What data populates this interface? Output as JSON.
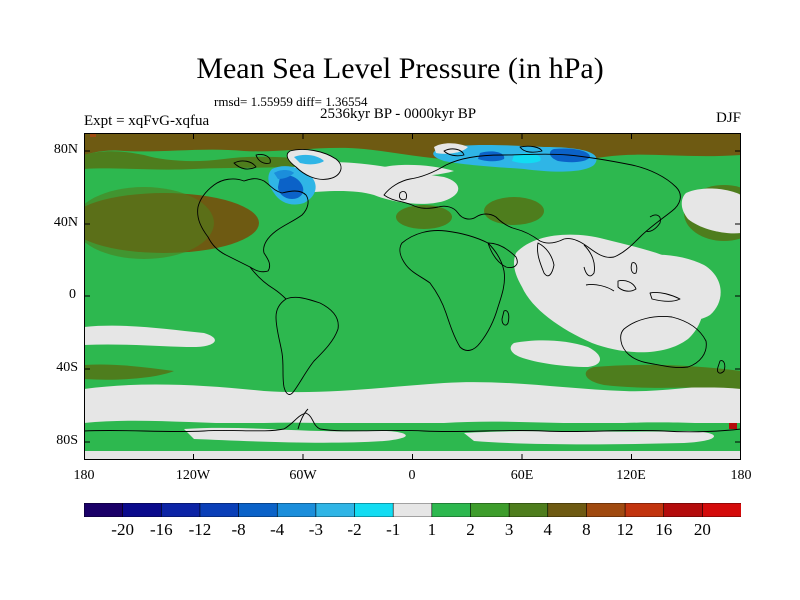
{
  "title": "Mean Sea Level Pressure (in hPa)",
  "stats": "rmsd= 1.55959 diff= 1.36554",
  "period": "2536kyr BP - 0000kyr BP",
  "experiment": "Expt = xqFvG-xqfua",
  "season": "DJF",
  "map": {
    "lat_ticks": [
      "80N",
      "40N",
      "0",
      "40S",
      "80S"
    ],
    "lon_ticks": [
      "180",
      "120W",
      "60W",
      "0",
      "60E",
      "120E",
      "180"
    ],
    "lon_range": [
      -180,
      180
    ],
    "lat_range": [
      -90,
      90
    ]
  },
  "colorbar": {
    "labels": [
      "-20",
      "-16",
      "-12",
      "-8",
      "-4",
      "-3",
      "-2",
      "-1",
      "1",
      "2",
      "3",
      "4",
      "8",
      "12",
      "16",
      "20"
    ],
    "colors": [
      "#1a0068",
      "#0a0a8c",
      "#0c24a6",
      "#0a3fb8",
      "#0b62c8",
      "#1b8edb",
      "#2fb5e6",
      "#12dcf2",
      "#e6e6e6",
      "#2db84f",
      "#3e9d2c",
      "#4e7d1d",
      "#6e5a12",
      "#a04a10",
      "#c2340e",
      "#b40c0c",
      "#d40b0b"
    ]
  }
}
